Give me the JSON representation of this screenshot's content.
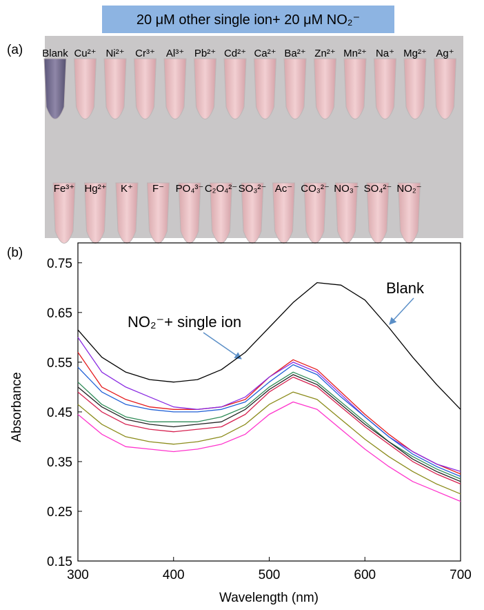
{
  "chart_data": {
    "type": "line",
    "banner": "20 μM other single  ion+ 20 μM NO₂⁻",
    "panel_a_label": "(a)",
    "panel_b_label": "(b)",
    "ions_row1": [
      "Blank",
      "Cu²⁺",
      "Ni²⁺",
      "Cr³⁺",
      "Al³⁺",
      "Pb²⁺",
      "Cd²⁺",
      "Ca²⁺",
      "Ba²⁺",
      "Zn²⁺",
      "Mn²⁺",
      "Na⁺",
      "Mg²⁺",
      "Ag⁺"
    ],
    "ions_row2": [
      "Fe³⁺",
      "Hg²⁺",
      "K⁺",
      "F⁻",
      "PO₄³⁻",
      "C₂O₄²⁻",
      "SO₃²⁻",
      "Ac⁻",
      "CO₃²⁻",
      "NO₃⁻",
      "SO₄²⁻",
      "NO₂⁻"
    ],
    "x_label": "Wavelength (nm)",
    "y_label": "Absorbance",
    "annotations": [
      "Blank",
      "NO₂⁻+ single ion"
    ],
    "xlim": [
      300,
      700
    ],
    "xticks": [
      300,
      400,
      500,
      600,
      700
    ],
    "ylim": [
      0.15,
      0.79
    ],
    "yticks": [
      0.15,
      0.25,
      0.35,
      0.45,
      0.55,
      0.65,
      0.75
    ],
    "x": [
      300,
      325,
      350,
      375,
      400,
      425,
      450,
      475,
      500,
      525,
      550,
      575,
      600,
      625,
      650,
      675,
      700
    ],
    "series": [
      {
        "color": "#000000",
        "values": [
          0.615,
          0.56,
          0.53,
          0.515,
          0.51,
          0.515,
          0.535,
          0.57,
          0.62,
          0.67,
          0.71,
          0.705,
          0.675,
          0.62,
          0.56,
          0.505,
          0.455
        ]
      },
      {
        "color": "#e41a1c",
        "values": [
          0.57,
          0.5,
          0.475,
          0.46,
          0.455,
          0.455,
          0.46,
          0.475,
          0.52,
          0.555,
          0.535,
          0.49,
          0.445,
          0.405,
          0.37,
          0.345,
          0.325
        ]
      },
      {
        "color": "#8a2be2",
        "values": [
          0.6,
          0.53,
          0.5,
          0.48,
          0.46,
          0.455,
          0.46,
          0.48,
          0.52,
          0.55,
          0.53,
          0.485,
          0.44,
          0.4,
          0.37,
          0.345,
          0.33
        ]
      },
      {
        "color": "#1f5fd6",
        "values": [
          0.54,
          0.49,
          0.465,
          0.455,
          0.45,
          0.45,
          0.455,
          0.47,
          0.51,
          0.545,
          0.525,
          0.48,
          0.44,
          0.4,
          0.365,
          0.34,
          0.32
        ]
      },
      {
        "color": "#2e8b57",
        "values": [
          0.51,
          0.465,
          0.44,
          0.43,
          0.43,
          0.43,
          0.44,
          0.46,
          0.5,
          0.53,
          0.51,
          0.47,
          0.43,
          0.39,
          0.36,
          0.335,
          0.315
        ]
      },
      {
        "color": "#222222",
        "values": [
          0.5,
          0.46,
          0.435,
          0.425,
          0.42,
          0.425,
          0.43,
          0.455,
          0.495,
          0.525,
          0.505,
          0.465,
          0.425,
          0.39,
          0.355,
          0.33,
          0.31
        ]
      },
      {
        "color": "#d6204f",
        "values": [
          0.49,
          0.45,
          0.425,
          0.415,
          0.41,
          0.415,
          0.42,
          0.445,
          0.49,
          0.52,
          0.5,
          0.46,
          0.42,
          0.385,
          0.35,
          0.325,
          0.305
        ]
      },
      {
        "color": "#8b8b1a",
        "values": [
          0.465,
          0.425,
          0.4,
          0.39,
          0.385,
          0.39,
          0.4,
          0.425,
          0.465,
          0.49,
          0.475,
          0.435,
          0.395,
          0.36,
          0.33,
          0.305,
          0.285
        ]
      },
      {
        "color": "#ff33cc",
        "values": [
          0.445,
          0.405,
          0.38,
          0.375,
          0.37,
          0.375,
          0.385,
          0.405,
          0.445,
          0.47,
          0.455,
          0.415,
          0.375,
          0.34,
          0.31,
          0.29,
          0.27
        ]
      }
    ]
  }
}
